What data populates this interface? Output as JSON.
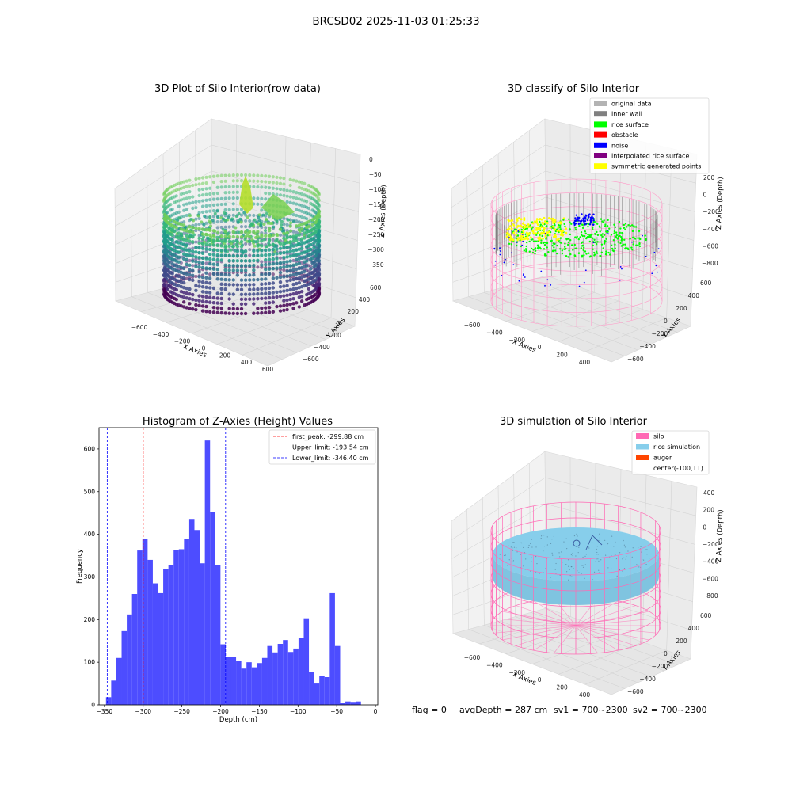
{
  "figure": {
    "suptitle": "BRCSD02 2025-11-03 01:25:33",
    "footer": {
      "flag": "flag = 0",
      "avg_depth": "avgDepth = 287 cm",
      "sv1": "sv1 = 700~2300",
      "sv2": "sv2 = 700~2300"
    }
  },
  "colors": {
    "hist_bar": "#4d4dff",
    "first_peak_line": "#ff0000",
    "limit_line": "#0000ff",
    "silo": "#ff69b4",
    "rice_simulation": "#87ceeb",
    "auger": "#ff4500",
    "original_data": "#b3b3b3",
    "inner_wall": "#808080",
    "rice_surface": "#00ff00",
    "obstacle": "#ff0000",
    "noise": "#0000ff",
    "interpolated_rice_surface": "#800080",
    "symmetric_generated_points": "#ffff00"
  },
  "chart_data": [
    {
      "type": "scatter3d",
      "title": "3D Plot of Silo Interior(row data)",
      "xlabel": "X Axies",
      "ylabel": "Y Axies",
      "zlabel": "Z Axies (Depth)",
      "x_ticks": [
        "−600",
        "−400",
        "−200",
        "0",
        "200",
        "400",
        "600"
      ],
      "y_ticks": [
        "−600",
        "−400",
        "−200",
        "0",
        "200",
        "400",
        "600"
      ],
      "z_ticks": [
        "0",
        "−50",
        "−100",
        "−150",
        "−200",
        "−250",
        "−300",
        "−350"
      ],
      "colormap": "viridis"
    },
    {
      "type": "scatter3d",
      "title": "3D classify of Silo Interior",
      "xlabel": "X Axies",
      "ylabel": "Y Axies",
      "zlabel": "Z Axies (Depth)",
      "x_ticks": [
        "−600",
        "−400",
        "−200",
        "0",
        "200",
        "400"
      ],
      "y_ticks": [
        "−600",
        "−400",
        "−200",
        "0",
        "200",
        "400",
        "600"
      ],
      "z_ticks": [
        "200",
        "0",
        "−200",
        "−400",
        "−600",
        "−800"
      ],
      "legend": [
        {
          "label": "original data",
          "color": "#b3b3b3"
        },
        {
          "label": "inner wall",
          "color": "#808080"
        },
        {
          "label": "rice surface",
          "color": "#00ff00"
        },
        {
          "label": "obstacle",
          "color": "#ff0000"
        },
        {
          "label": "noise",
          "color": "#0000ff"
        },
        {
          "label": "interpolated rice surface",
          "color": "#800080"
        },
        {
          "label": "symmetric generated points",
          "color": "#ffff00"
        }
      ],
      "legend_loc": "upper right"
    },
    {
      "type": "bar",
      "title": "Histogram of Z-Axies (Height) Values",
      "xlabel": "Depth (cm)",
      "ylabel": "Frequency",
      "xlim": [
        -357,
        3
      ],
      "ylim": [
        0,
        650
      ],
      "x_ticks": [
        -350,
        -300,
        -250,
        -200,
        -150,
        -100,
        -50,
        0
      ],
      "x_tick_labels": [
        "−350",
        "−300",
        "−250",
        "−200",
        "−150",
        "−100",
        "−50",
        "0"
      ],
      "y_ticks": [
        0,
        100,
        200,
        300,
        400,
        500,
        600
      ],
      "bin_start": -348,
      "bin_width": 6.72,
      "values": [
        18,
        57,
        110,
        173,
        212,
        260,
        362,
        390,
        340,
        285,
        262,
        318,
        328,
        363,
        365,
        390,
        436,
        410,
        332,
        620,
        453,
        328,
        142,
        112,
        113,
        103,
        85,
        100,
        88,
        98,
        110,
        138,
        123,
        143,
        152,
        124,
        132,
        157,
        203,
        77,
        50,
        68,
        65,
        262,
        138,
        4,
        8,
        7,
        8
      ],
      "vlines": [
        {
          "label": "first_peak: -299.88 cm",
          "x": -299.88,
          "color": "#ff0000"
        },
        {
          "label": "Upper_limit: -193.54 cm",
          "x": -193.54,
          "color": "#0000ff"
        },
        {
          "label": "Lower_limit: -346.40 cm",
          "x": -346.4,
          "color": "#0000ff"
        }
      ],
      "legend_loc": "upper right"
    },
    {
      "type": "surface3d",
      "title": "3D simulation of Silo Interior",
      "xlabel": "X Axies",
      "ylabel": "Y Axies",
      "zlabel": "Z Axies (Depth)",
      "x_ticks": [
        "−600",
        "−400",
        "−200",
        "0",
        "200",
        "400"
      ],
      "y_ticks": [
        "−600",
        "−400",
        "−200",
        "0",
        "200",
        "400",
        "600"
      ],
      "z_ticks": [
        "400",
        "200",
        "0",
        "−200",
        "−400",
        "−600",
        "−800"
      ],
      "legend": [
        {
          "label": "silo",
          "color": "#ff69b4",
          "swatch": true
        },
        {
          "label": "rice simulation",
          "color": "#87ceeb",
          "swatch": true
        },
        {
          "label": "auger",
          "color": "#ff4500",
          "swatch": true
        },
        {
          "label": "center(-100,11)",
          "color": "#ffffff",
          "swatch": false
        }
      ],
      "legend_loc": "upper right"
    }
  ]
}
